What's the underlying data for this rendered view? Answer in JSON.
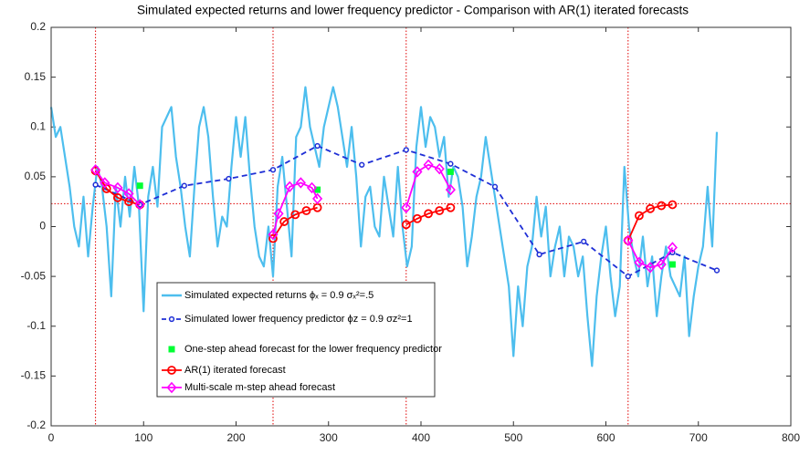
{
  "chart_data": {
    "type": "line",
    "title": "Simulated expected returns and lower frequency predictor - Comparison with AR(1) iterated forecasts",
    "xlim": [
      0,
      800
    ],
    "xticks": [
      0,
      100,
      200,
      300,
      400,
      500,
      600,
      700,
      800
    ],
    "ylim": [
      -0.2,
      0.2
    ],
    "yticks": [
      -0.2,
      -0.15,
      -0.1,
      -0.05,
      0,
      0.05,
      0.1,
      0.15,
      0.2
    ],
    "vlines": [
      48,
      240,
      384,
      624
    ],
    "vline_color": "#e00000",
    "hline": 0.023,
    "hline_color": "#e00000",
    "legend": "bottom-left",
    "series": [
      {
        "name": "Simulated expected returns ϕₓ = 0.9 σₓ²=.5",
        "color": "#4DBEEE",
        "line": true,
        "dash": false,
        "marker": "none",
        "x": [
          0,
          5,
          10,
          15,
          20,
          25,
          30,
          35,
          40,
          45,
          50,
          55,
          60,
          65,
          70,
          75,
          80,
          85,
          90,
          95,
          100,
          105,
          110,
          115,
          120,
          125,
          130,
          135,
          140,
          145,
          150,
          155,
          160,
          165,
          170,
          175,
          180,
          185,
          190,
          195,
          200,
          205,
          210,
          215,
          220,
          225,
          230,
          235,
          240,
          245,
          250,
          255,
          260,
          265,
          270,
          275,
          280,
          285,
          290,
          295,
          300,
          305,
          310,
          315,
          320,
          325,
          330,
          335,
          340,
          345,
          350,
          355,
          360,
          365,
          370,
          375,
          380,
          385,
          390,
          395,
          400,
          405,
          410,
          415,
          420,
          425,
          430,
          435,
          440,
          445,
          450,
          455,
          460,
          465,
          470,
          475,
          480,
          485,
          490,
          495,
          500,
          505,
          510,
          515,
          520,
          525,
          530,
          535,
          540,
          545,
          550,
          555,
          560,
          565,
          570,
          575,
          580,
          585,
          590,
          595,
          600,
          605,
          610,
          615,
          620,
          625,
          630,
          635,
          640,
          645,
          650,
          655,
          660,
          665,
          670,
          675,
          680,
          685,
          690,
          695,
          700,
          705,
          710,
          715,
          720
        ],
        "values": [
          0.12,
          0.09,
          0.1,
          0.07,
          0.04,
          0.0,
          -0.02,
          0.03,
          -0.03,
          0.02,
          0.06,
          0.04,
          0.0,
          -0.07,
          0.04,
          0.0,
          0.05,
          0.01,
          0.06,
          0.02,
          -0.085,
          0.03,
          0.06,
          0.02,
          0.1,
          0.11,
          0.12,
          0.07,
          0.04,
          0.0,
          -0.03,
          0.04,
          0.1,
          0.12,
          0.09,
          0.03,
          -0.02,
          0.01,
          0.0,
          0.06,
          0.11,
          0.07,
          0.11,
          0.05,
          0.0,
          -0.03,
          -0.04,
          0.0,
          -0.05,
          0.04,
          0.07,
          0.02,
          -0.03,
          0.09,
          0.1,
          0.14,
          0.1,
          0.08,
          0.06,
          0.1,
          0.12,
          0.14,
          0.12,
          0.09,
          0.06,
          0.1,
          0.05,
          -0.02,
          0.03,
          0.04,
          0.0,
          -0.01,
          0.05,
          0.02,
          -0.01,
          0.06,
          0.0,
          -0.04,
          -0.02,
          0.08,
          0.12,
          0.08,
          0.11,
          0.1,
          0.07,
          0.09,
          0.03,
          0.06,
          0.05,
          0.02,
          -0.04,
          -0.01,
          0.03,
          0.05,
          0.09,
          0.06,
          0.03,
          0.0,
          -0.03,
          -0.06,
          -0.13,
          -0.06,
          -0.1,
          -0.04,
          -0.02,
          0.03,
          -0.01,
          0.02,
          -0.05,
          -0.02,
          0.0,
          -0.05,
          -0.01,
          -0.02,
          -0.05,
          -0.03,
          -0.09,
          -0.14,
          -0.07,
          -0.03,
          0.0,
          -0.05,
          -0.09,
          -0.06,
          0.06,
          0.0,
          -0.03,
          -0.05,
          -0.01,
          -0.06,
          -0.03,
          -0.09,
          -0.05,
          -0.02,
          -0.05,
          -0.06,
          -0.07,
          -0.03,
          -0.11,
          -0.07,
          -0.04,
          -0.02,
          0.04,
          -0.02,
          0.095
        ]
      },
      {
        "name": "Simulated lower frequency predictor ϕz = 0.9 σz²=1",
        "color": "#1f2fd6",
        "line": true,
        "dash": true,
        "marker": "circle",
        "x": [
          48,
          96,
          144,
          192,
          240,
          288,
          336,
          384,
          432,
          480,
          528,
          576,
          624,
          672,
          720
        ],
        "values": [
          0.042,
          0.022,
          0.041,
          0.048,
          0.057,
          0.081,
          0.062,
          0.077,
          0.063,
          0.04,
          -0.028,
          -0.015,
          -0.05,
          -0.026,
          -0.044
        ]
      },
      {
        "name": "One-step ahead forecast for the lower frequency predictor",
        "color": "#00ff33",
        "line": false,
        "dash": false,
        "marker": "square",
        "x": [
          96,
          288,
          432,
          672
        ],
        "values": [
          0.041,
          0.037,
          0.055,
          -0.038
        ]
      },
      {
        "name": "AR(1) iterated forecast",
        "color": "#ff0000",
        "line": true,
        "dash": false,
        "marker": "circle-open",
        "x": [
          48,
          60,
          72,
          84,
          96,
          168,
          240,
          252,
          264,
          276,
          288,
          336,
          384,
          396,
          408,
          420,
          432,
          528,
          624,
          636,
          648,
          660,
          672
        ],
        "values": [
          0.056,
          0.038,
          0.029,
          0.025,
          0.022,
          null,
          -0.012,
          0.005,
          0.012,
          0.016,
          0.019,
          null,
          0.002,
          0.008,
          0.013,
          0.016,
          0.019,
          null,
          -0.014,
          0.011,
          0.018,
          0.021,
          0.022
        ]
      },
      {
        "name": "Multi-scale m-step ahead forecast",
        "color": "#ff00ff",
        "line": true,
        "dash": false,
        "marker": "diamond",
        "x": [
          48,
          58,
          72,
          84,
          96,
          168,
          240,
          246,
          258,
          270,
          282,
          288,
          336,
          384,
          396,
          408,
          420,
          432,
          528,
          624,
          636,
          648,
          660,
          672
        ],
        "values": [
          0.057,
          0.044,
          0.039,
          0.033,
          0.022,
          null,
          -0.008,
          0.013,
          0.04,
          0.044,
          0.039,
          0.028,
          null,
          0.019,
          0.055,
          0.062,
          0.058,
          0.037,
          null,
          -0.014,
          -0.036,
          -0.041,
          -0.038,
          -0.021
        ]
      }
    ]
  }
}
